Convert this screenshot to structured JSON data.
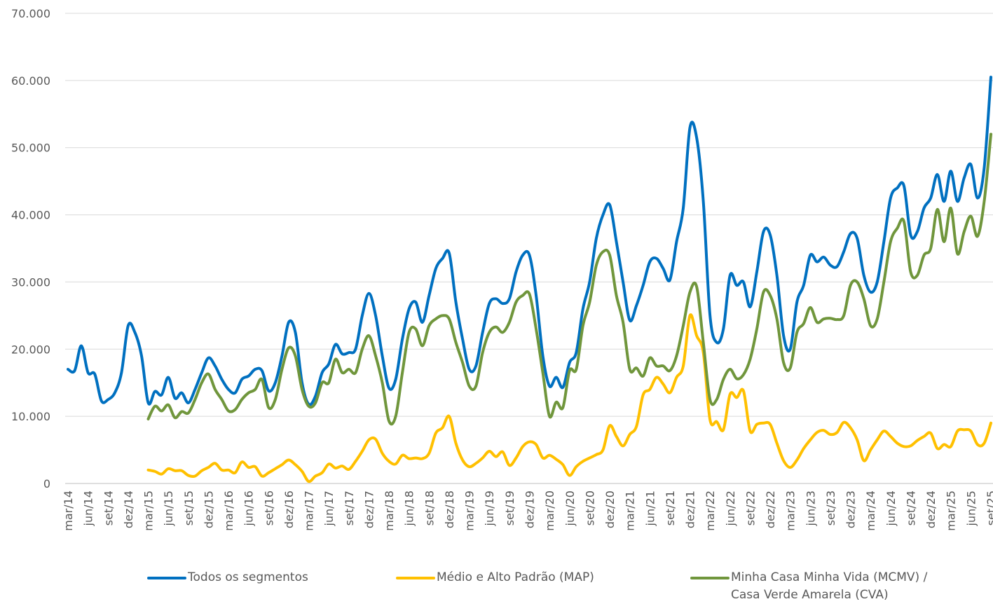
{
  "chart_data": {
    "type": "line",
    "categories": [
      "mar/14",
      null,
      null,
      "jun/14",
      null,
      null,
      "set/14",
      null,
      null,
      "dez/14",
      null,
      null,
      "mar/15",
      null,
      null,
      "jun/15",
      null,
      null,
      "set/15",
      null,
      null,
      "dez/15",
      null,
      null,
      "mar/16",
      null,
      null,
      "jun/16",
      null,
      null,
      "set/16",
      null,
      null,
      "dez/16",
      null,
      null,
      "mar/17",
      null,
      null,
      "jun/17",
      null,
      null,
      "set/17",
      null,
      null,
      "dez/17",
      null,
      null,
      "mar/18",
      null,
      null,
      "jun/18",
      null,
      null,
      "set/18",
      null,
      null,
      "dez/18",
      null,
      null,
      "mar/19",
      null,
      null,
      "jun/19",
      null,
      null,
      "set/19",
      null,
      null,
      "dez/19",
      null,
      null,
      "mar/20",
      null,
      null,
      "jun/20",
      null,
      null,
      "set/20",
      null,
      null,
      "dez/20",
      null,
      null,
      "mar/21",
      null,
      null,
      "jun/21",
      null,
      null,
      "set/21",
      null,
      null,
      "dez/21",
      null,
      null,
      "mar/22",
      null,
      null,
      "jun/22",
      null,
      null,
      "set/22",
      null,
      null,
      "dez/22",
      null,
      null,
      "mar/23",
      null,
      null,
      "jun/23",
      null,
      null,
      "set/23",
      null,
      null,
      "dez/23",
      null,
      null,
      "mar/24",
      null,
      null,
      "jun/24",
      null,
      null,
      "set/24",
      null,
      null,
      "dez/24",
      null,
      null,
      "mar/25",
      null,
      null,
      "jun/25",
      null,
      null,
      "set/25"
    ],
    "series": [
      {
        "name": "Todos os segmentos",
        "color": "#0070c0",
        "values": [
          17000,
          16800,
          20500,
          16500,
          16300,
          12300,
          12500,
          13500,
          16500,
          23500,
          22500,
          19000,
          12000,
          13700,
          13200,
          15800,
          12700,
          13500,
          12000,
          14000,
          16500,
          18700,
          17500,
          15500,
          14000,
          13500,
          15500,
          16000,
          17000,
          16800,
          13800,
          15000,
          19000,
          24000,
          22500,
          15000,
          11800,
          13000,
          16500,
          17800,
          20700,
          19300,
          19500,
          20000,
          25000,
          28300,
          25000,
          19000,
          14200,
          15500,
          21500,
          26000,
          27000,
          24000,
          28000,
          32000,
          33500,
          34300,
          27000,
          21500,
          17000,
          17500,
          22500,
          26800,
          27500,
          26800,
          27500,
          31500,
          34000,
          34000,
          28000,
          19000,
          14500,
          15800,
          14300,
          18000,
          19500,
          26000,
          30000,
          36500,
          40000,
          41500,
          36000,
          30000,
          24300,
          26500,
          29500,
          33000,
          33500,
          32000,
          30300,
          36000,
          41000,
          53000,
          51500,
          42000,
          25000,
          21000,
          23000,
          31000,
          29500,
          30000,
          26300,
          31500,
          37500,
          37000,
          31000,
          22000,
          20000,
          27000,
          29500,
          34000,
          33000,
          33700,
          32500,
          32300,
          34500,
          37200,
          36500,
          31000,
          28500,
          30000,
          36000,
          42500,
          44000,
          44300,
          37000,
          37500,
          41000,
          42500,
          46000,
          42000,
          46500,
          42000,
          45500,
          47500,
          42500,
          47000,
          60500
        ]
      },
      {
        "name": "Médio e Alto Padrão (MAP)",
        "color": "#ffc000",
        "values": [
          null,
          null,
          null,
          null,
          null,
          null,
          null,
          null,
          null,
          null,
          null,
          null,
          2000,
          1800,
          1400,
          2200,
          1900,
          1900,
          1200,
          1100,
          1900,
          2400,
          3000,
          2000,
          2000,
          1600,
          3200,
          2400,
          2500,
          1100,
          1600,
          2200,
          2800,
          3500,
          2800,
          1800,
          300,
          1100,
          1600,
          2900,
          2300,
          2600,
          2100,
          3300,
          4800,
          6500,
          6600,
          4500,
          3300,
          2900,
          4200,
          3700,
          3800,
          3700,
          4500,
          7500,
          8300,
          10000,
          6000,
          3500,
          2500,
          3000,
          3800,
          4800,
          4000,
          4700,
          2700,
          3800,
          5500,
          6200,
          5800,
          3800,
          4200,
          3600,
          2800,
          1200,
          2500,
          3300,
          3800,
          4300,
          5000,
          8600,
          7000,
          5600,
          7300,
          8500,
          13200,
          14000,
          15800,
          14800,
          13500,
          15800,
          17500,
          25000,
          22000,
          19500,
          9500,
          9200,
          8000,
          13300,
          12800,
          13800,
          7800,
          8800,
          9000,
          8800,
          6000,
          3400,
          2400,
          3500,
          5200,
          6500,
          7600,
          7900,
          7300,
          7600,
          9100,
          8300,
          6500,
          3400,
          5000,
          6500,
          7800,
          7000,
          6000,
          5500,
          5600,
          6400,
          7000,
          7500,
          5200,
          5800,
          5500,
          7800,
          8000,
          7800,
          5800,
          6000,
          9000
        ]
      },
      {
        "name": "Minha Casa Minha Vida (MCMV) / Casa Verde Amarela (CVA)",
        "color": "#70963c",
        "values": [
          null,
          null,
          null,
          null,
          null,
          null,
          null,
          null,
          null,
          null,
          null,
          null,
          9600,
          11500,
          10800,
          11700,
          9800,
          10700,
          10500,
          12500,
          15000,
          16300,
          14000,
          12500,
          10800,
          11000,
          12500,
          13500,
          14000,
          15500,
          11300,
          12500,
          17000,
          20200,
          19000,
          14000,
          11500,
          12000,
          15000,
          15000,
          18500,
          16500,
          17000,
          16500,
          20000,
          22000,
          19000,
          15000,
          9300,
          10000,
          16500,
          22500,
          23000,
          20500,
          23500,
          24500,
          25000,
          24500,
          21000,
          18000,
          14500,
          14500,
          19500,
          22500,
          23300,
          22500,
          24000,
          27000,
          28000,
          28200,
          23000,
          16500,
          10000,
          12100,
          11300,
          16800,
          17000,
          23500,
          27000,
          32500,
          34500,
          34000,
          28000,
          24000,
          17000,
          17200,
          16000,
          18700,
          17500,
          17500,
          16800,
          19000,
          23500,
          28500,
          29300,
          21000,
          12500,
          12500,
          15500,
          17000,
          15600,
          16200,
          18500,
          23000,
          28500,
          28000,
          24500,
          18000,
          17200,
          22500,
          23800,
          26200,
          24000,
          24500,
          24600,
          24400,
          25000,
          29500,
          30000,
          27500,
          23500,
          24500,
          30000,
          36000,
          38000,
          39000,
          31500,
          31000,
          34000,
          35000,
          40800,
          36000,
          41000,
          34200,
          37500,
          39800,
          36800,
          42000,
          52000
        ]
      }
    ],
    "ylim": [
      0,
      70000
    ],
    "yticks": [
      0,
      {
        "value": 10000,
        "label": "10.000"
      },
      {
        "value": 20000,
        "label": "20.000"
      },
      {
        "value": 30000,
        "label": "30.000"
      },
      {
        "value": 40000,
        "label": "40.000"
      },
      {
        "value": 50000,
        "label": "50.000"
      },
      {
        "value": 60000,
        "label": "60.000"
      },
      {
        "value": 70000,
        "label": "70.000"
      }
    ],
    "grid": true
  }
}
